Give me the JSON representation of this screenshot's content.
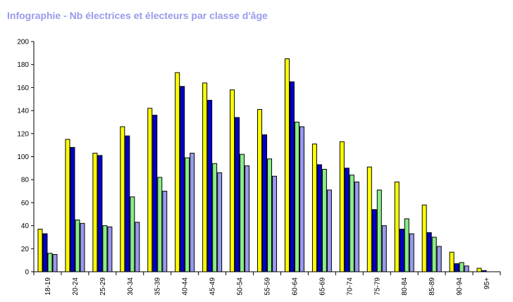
{
  "title": "Infographie - Nb électrices et électeurs par classe d'âge",
  "colors": {
    "title": "#9999ee",
    "series": [
      "#ffff00",
      "#0000cc",
      "#88ee88",
      "#9999ee"
    ],
    "axis": "#000000"
  },
  "chart_data": {
    "type": "bar",
    "title": "Infographie - Nb électrices et électeurs par classe d'âge",
    "xlabel": "",
    "ylabel": "",
    "ylim": [
      0,
      200
    ],
    "yticks": [
      0,
      20,
      40,
      60,
      80,
      100,
      120,
      140,
      160,
      180,
      200
    ],
    "grid": false,
    "legend": "none",
    "categories": [
      "18-19",
      "20-24",
      "25-29",
      "30-34",
      "35-39",
      "40-44",
      "45-49",
      "50-54",
      "55-59",
      "60-64",
      "65-69",
      "70-74",
      "75-79",
      "80-84",
      "85-89",
      "90-94",
      "95+"
    ],
    "series": [
      {
        "color": "#ffff00",
        "values": [
          37,
          115,
          103,
          126,
          142,
          173,
          164,
          158,
          141,
          185,
          111,
          113,
          91,
          78,
          58,
          17,
          3
        ]
      },
      {
        "color": "#0000cc",
        "values": [
          33,
          108,
          101,
          118,
          136,
          161,
          149,
          134,
          119,
          165,
          93,
          90,
          54,
          37,
          34,
          7,
          1
        ]
      },
      {
        "color": "#88ee88",
        "values": [
          16,
          45,
          40,
          65,
          82,
          99,
          94,
          102,
          98,
          130,
          89,
          84,
          71,
          46,
          30,
          8,
          0
        ]
      },
      {
        "color": "#9999ee",
        "values": [
          15,
          42,
          39,
          43,
          70,
          103,
          86,
          92,
          83,
          126,
          71,
          78,
          40,
          33,
          22,
          5,
          0
        ]
      }
    ]
  }
}
